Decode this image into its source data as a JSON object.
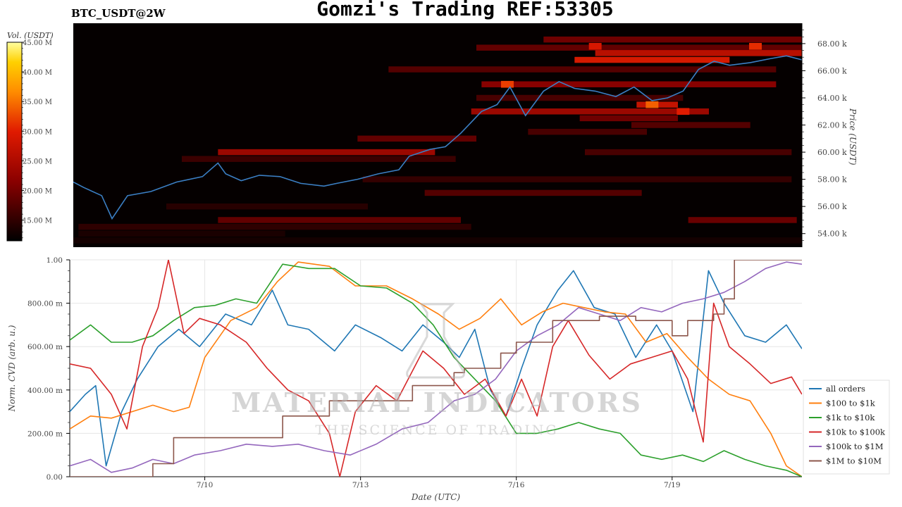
{
  "header": {
    "title": "Gomzi's Trading REF:53305",
    "pair": "BTC_USDT@2W"
  },
  "colors": {
    "heatmap_bg": "#050000",
    "price_line": "#3b7fc4",
    "all_orders": "#1f77b4",
    "c100_1k": "#ff7f0e",
    "c1k_10k": "#2ca02c",
    "c10k_100k": "#d62728",
    "c100k_1m": "#9467bd",
    "c1m_10m": "#8c564b"
  },
  "chart_data": [
    {
      "type": "heatmap",
      "ylabel": "Price (USDT)",
      "ylim": [
        53000,
        69500
      ],
      "y_ticks": [
        54000,
        56000,
        58000,
        60000,
        62000,
        64000,
        66000,
        68000
      ],
      "y_tick_labels": [
        "54.00 k",
        "56.00 k",
        "58.00 k",
        "60.00 k",
        "62.00 k",
        "64.00 k",
        "66.00 k",
        "68.00 k"
      ],
      "colorbar": {
        "title": "Vol. (USDT)",
        "range": [
          11500000,
          45000000
        ],
        "ticks": [
          15000000,
          20000000,
          25000000,
          30000000,
          35000000,
          40000000,
          45000000
        ],
        "tick_labels": [
          "15.00 M",
          "20.00 M",
          "25.00 M",
          "30.00 M",
          "35.00 M",
          "40.00 M",
          "45.00 M"
        ]
      },
      "x_range_days": [
        7.4,
        21.5
      ],
      "price_series": {
        "name": "price",
        "x": [
          7.4,
          7.6,
          7.95,
          8.15,
          8.45,
          8.9,
          9.4,
          9.9,
          10.2,
          10.35,
          10.65,
          11.0,
          11.4,
          11.8,
          12.25,
          12.5,
          12.9,
          13.3,
          13.7,
          13.9,
          14.3,
          14.6,
          14.9,
          15.3,
          15.6,
          15.85,
          16.15,
          16.5,
          16.8,
          17.1,
          17.5,
          17.9,
          18.25,
          18.6,
          18.9,
          19.2,
          19.5,
          19.8,
          20.1,
          20.5,
          20.9,
          21.2,
          21.5
        ],
        "y": [
          57800,
          57400,
          56800,
          55100,
          56800,
          57100,
          57800,
          58200,
          59200,
          58400,
          57900,
          58300,
          58200,
          57700,
          57500,
          57700,
          58000,
          58400,
          58700,
          59700,
          60200,
          60400,
          61400,
          63000,
          63500,
          64800,
          62700,
          64500,
          65200,
          64700,
          64500,
          64100,
          64800,
          63800,
          64000,
          64500,
          66100,
          66700,
          66400,
          66600,
          66900,
          67100,
          66800
        ]
      },
      "volume_bands": [
        {
          "price": 68300,
          "x": [
            16.5,
            21.5
          ],
          "vol": 20000000
        },
        {
          "price": 67700,
          "x": [
            15.2,
            21.5
          ],
          "vol": 19000000
        },
        {
          "price": 67300,
          "x": [
            17.5,
            21.5
          ],
          "vol": 27000000
        },
        {
          "price": 66800,
          "x": [
            17.1,
            20.1
          ],
          "vol": 30000000
        },
        {
          "price": 66100,
          "x": [
            13.5,
            21.0
          ],
          "vol": 18000000
        },
        {
          "price": 65000,
          "x": [
            15.3,
            21.0
          ],
          "vol": 22000000
        },
        {
          "price": 64000,
          "x": [
            15.2,
            19.2
          ],
          "vol": 17000000
        },
        {
          "price": 63500,
          "x": [
            18.3,
            19.1
          ],
          "vol": 28000000
        },
        {
          "price": 63000,
          "x": [
            15.1,
            19.7
          ],
          "vol": 24000000
        },
        {
          "price": 62500,
          "x": [
            17.2,
            19.1
          ],
          "vol": 20000000
        },
        {
          "price": 62000,
          "x": [
            18.2,
            20.5
          ],
          "vol": 18000000
        },
        {
          "price": 61500,
          "x": [
            16.2,
            18.5
          ],
          "vol": 17000000
        },
        {
          "price": 61000,
          "x": [
            12.9,
            15.2
          ],
          "vol": 19000000
        },
        {
          "price": 60000,
          "x": [
            10.2,
            14.4
          ],
          "vol": 24000000
        },
        {
          "price": 60000,
          "x": [
            17.3,
            21.3
          ],
          "vol": 17000000
        },
        {
          "price": 59500,
          "x": [
            9.5,
            14.8
          ],
          "vol": 16000000
        },
        {
          "price": 58000,
          "x": [
            13.0,
            21.3
          ],
          "vol": 15500000
        },
        {
          "price": 57000,
          "x": [
            14.2,
            18.4
          ],
          "vol": 18000000
        },
        {
          "price": 56000,
          "x": [
            9.2,
            13.1
          ],
          "vol": 14500000
        },
        {
          "price": 55000,
          "x": [
            10.2,
            14.9
          ],
          "vol": 19000000
        },
        {
          "price": 55000,
          "x": [
            19.3,
            21.4
          ],
          "vol": 19500000
        },
        {
          "price": 54500,
          "x": [
            7.5,
            15.1
          ],
          "vol": 15000000
        },
        {
          "price": 54000,
          "x": [
            7.5,
            11.5
          ],
          "vol": 13500000
        },
        {
          "price": 53500,
          "x": [
            7.4,
            21.5
          ],
          "vol": 13000000
        }
      ],
      "hot_spots": [
        {
          "price": 65000,
          "x": 15.8,
          "vol": 32000000
        },
        {
          "price": 63500,
          "x": 18.6,
          "vol": 34000000
        },
        {
          "price": 63000,
          "x": 19.2,
          "vol": 30000000
        },
        {
          "price": 67800,
          "x": 20.6,
          "vol": 31000000
        },
        {
          "price": 67800,
          "x": 17.5,
          "vol": 29000000
        }
      ]
    },
    {
      "type": "line",
      "xlabel": "Date (UTC)",
      "ylabel": "Norm. CVD (arb. u.)",
      "ylim": [
        0,
        1
      ],
      "y_ticks": [
        0,
        0.2,
        0.4,
        0.6,
        0.8,
        1.0
      ],
      "y_tick_labels": [
        "0.00",
        "200.00 m",
        "400.00 m",
        "600.00 m",
        "800.00 m",
        "1.00"
      ],
      "x_range_days": [
        7.4,
        21.5
      ],
      "x_ticks": [
        10,
        13,
        16,
        19
      ],
      "x_tick_labels": [
        "7/10",
        "7/13",
        "7/16",
        "7/19"
      ],
      "series": [
        {
          "name": "all orders",
          "x": [
            7.4,
            7.7,
            7.9,
            8.1,
            8.4,
            8.7,
            9.1,
            9.5,
            9.9,
            10.4,
            10.9,
            11.3,
            11.6,
            12.0,
            12.5,
            12.9,
            13.4,
            13.8,
            14.2,
            14.6,
            14.9,
            15.2,
            15.5,
            15.8,
            16.1,
            16.4,
            16.8,
            17.1,
            17.5,
            17.9,
            18.3,
            18.7,
            19.0,
            19.4,
            19.7,
            20.0,
            20.4,
            20.8,
            21.2,
            21.5
          ],
          "y": [
            0.3,
            0.38,
            0.42,
            0.05,
            0.3,
            0.45,
            0.6,
            0.68,
            0.6,
            0.75,
            0.7,
            0.86,
            0.7,
            0.68,
            0.58,
            0.7,
            0.64,
            0.58,
            0.7,
            0.62,
            0.55,
            0.68,
            0.4,
            0.28,
            0.5,
            0.7,
            0.86,
            0.95,
            0.78,
            0.75,
            0.55,
            0.7,
            0.58,
            0.3,
            0.95,
            0.8,
            0.65,
            0.62,
            0.7,
            0.59
          ]
        },
        {
          "name": "$100 to $1k",
          "x": [
            7.4,
            7.8,
            8.2,
            8.6,
            9.0,
            9.4,
            9.7,
            10.0,
            10.5,
            11.0,
            11.4,
            11.8,
            12.4,
            12.9,
            13.5,
            14.0,
            14.5,
            14.9,
            15.3,
            15.7,
            16.1,
            16.5,
            16.9,
            17.3,
            17.7,
            18.1,
            18.5,
            18.9,
            19.3,
            19.7,
            20.1,
            20.5,
            20.9,
            21.2,
            21.5
          ],
          "y": [
            0.22,
            0.28,
            0.27,
            0.3,
            0.33,
            0.3,
            0.32,
            0.55,
            0.72,
            0.78,
            0.9,
            0.99,
            0.97,
            0.88,
            0.88,
            0.82,
            0.75,
            0.68,
            0.73,
            0.82,
            0.7,
            0.76,
            0.8,
            0.78,
            0.76,
            0.75,
            0.62,
            0.66,
            0.55,
            0.45,
            0.38,
            0.35,
            0.2,
            0.05,
            0.0
          ]
        },
        {
          "name": "$1k to $10k",
          "x": [
            7.4,
            7.8,
            8.2,
            8.6,
            9.0,
            9.4,
            9.8,
            10.2,
            10.6,
            11.0,
            11.5,
            12.0,
            12.5,
            13.0,
            13.5,
            14.0,
            14.4,
            14.8,
            15.2,
            15.6,
            16.0,
            16.4,
            16.8,
            17.2,
            17.6,
            18.0,
            18.4,
            18.8,
            19.2,
            19.6,
            20.0,
            20.4,
            20.8,
            21.2,
            21.5
          ],
          "y": [
            0.63,
            0.7,
            0.62,
            0.62,
            0.65,
            0.72,
            0.78,
            0.79,
            0.82,
            0.8,
            0.98,
            0.96,
            0.96,
            0.88,
            0.87,
            0.8,
            0.7,
            0.55,
            0.45,
            0.35,
            0.2,
            0.2,
            0.22,
            0.25,
            0.22,
            0.2,
            0.1,
            0.08,
            0.1,
            0.07,
            0.12,
            0.08,
            0.05,
            0.03,
            0.0
          ]
        },
        {
          "name": "$10k to $100k",
          "x": [
            7.4,
            7.8,
            8.2,
            8.5,
            8.8,
            9.1,
            9.3,
            9.6,
            9.9,
            10.3,
            10.8,
            11.2,
            11.6,
            12.0,
            12.4,
            12.6,
            12.9,
            13.3,
            13.7,
            14.2,
            14.6,
            15.0,
            15.4,
            15.8,
            16.1,
            16.4,
            16.7,
            17.0,
            17.4,
            17.8,
            18.2,
            18.6,
            19.0,
            19.3,
            19.6,
            19.8,
            20.1,
            20.5,
            20.9,
            21.3,
            21.5
          ],
          "y": [
            0.52,
            0.5,
            0.38,
            0.22,
            0.6,
            0.78,
            1.0,
            0.66,
            0.73,
            0.7,
            0.62,
            0.5,
            0.4,
            0.35,
            0.2,
            0.0,
            0.3,
            0.42,
            0.35,
            0.58,
            0.5,
            0.38,
            0.45,
            0.28,
            0.45,
            0.28,
            0.6,
            0.72,
            0.56,
            0.45,
            0.52,
            0.55,
            0.58,
            0.45,
            0.16,
            0.8,
            0.6,
            0.52,
            0.43,
            0.46,
            0.38
          ]
        },
        {
          "name": "$100k to $1M",
          "x": [
            7.4,
            7.8,
            8.2,
            8.6,
            9.0,
            9.4,
            9.8,
            10.3,
            10.8,
            11.3,
            11.8,
            12.3,
            12.8,
            13.3,
            13.8,
            14.3,
            14.8,
            15.2,
            15.6,
            16.0,
            16.4,
            16.8,
            17.2,
            17.6,
            18.0,
            18.4,
            18.8,
            19.2,
            19.6,
            20.0,
            20.4,
            20.8,
            21.2,
            21.5
          ],
          "y": [
            0.05,
            0.08,
            0.02,
            0.04,
            0.08,
            0.06,
            0.1,
            0.12,
            0.15,
            0.14,
            0.15,
            0.12,
            0.1,
            0.15,
            0.22,
            0.25,
            0.35,
            0.38,
            0.45,
            0.58,
            0.65,
            0.7,
            0.78,
            0.75,
            0.72,
            0.78,
            0.76,
            0.8,
            0.82,
            0.85,
            0.9,
            0.96,
            0.99,
            0.98
          ]
        },
        {
          "name": "$1M to $10M",
          "x": [
            7.4,
            8.9,
            9.0,
            9.4,
            10.5,
            11.5,
            12.4,
            13.3,
            14.0,
            14.8,
            15.0,
            15.7,
            16.0,
            16.7,
            16.9,
            17.6,
            18.3,
            19.0,
            19.3,
            19.8,
            20.0,
            20.2,
            21.5
          ],
          "y": [
            0.0,
            0.0,
            0.06,
            0.18,
            0.18,
            0.28,
            0.35,
            0.35,
            0.42,
            0.48,
            0.5,
            0.57,
            0.62,
            0.72,
            0.72,
            0.74,
            0.72,
            0.65,
            0.72,
            0.75,
            0.82,
            1.0,
            1.0
          ]
        }
      ],
      "legend": {
        "position": "lower-right"
      }
    }
  ],
  "watermark": {
    "line1": "MATERIAL INDICATORS",
    "line2": "THE SCIENCE OF TRADING"
  }
}
